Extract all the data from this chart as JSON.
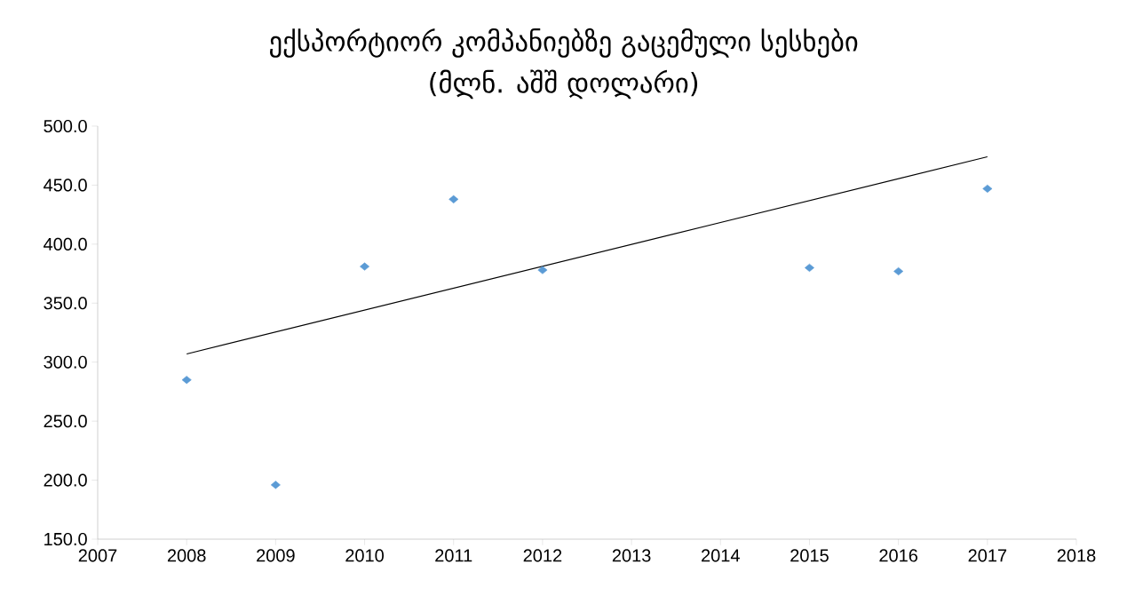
{
  "chart_data": {
    "type": "scatter",
    "title": "ექსპორტიორ კომპანიებზე გაცემული სესხები",
    "subtitle": "(მლნ. აშშ  დოლარი)",
    "marker": "diamond",
    "xlim": [
      2007,
      2018
    ],
    "xticks": [
      2007,
      2008,
      2009,
      2010,
      2011,
      2012,
      2013,
      2014,
      2015,
      2016,
      2017,
      2018
    ],
    "ylim": [
      150,
      500
    ],
    "yticks": [
      {
        "value": 150,
        "label": "150.0"
      },
      {
        "value": 200,
        "label": "200.0"
      },
      {
        "value": 250,
        "label": "250.0"
      },
      {
        "value": 300,
        "label": "300.0"
      },
      {
        "value": 350,
        "label": "350.0"
      },
      {
        "value": 400,
        "label": "400.0"
      },
      {
        "value": 450,
        "label": "450.0"
      },
      {
        "value": 500,
        "label": "500.0"
      }
    ],
    "series": [
      {
        "color": "#5b9bd5",
        "x": [
          2008,
          2009,
          2010,
          2011,
          2012,
          2015,
          2016,
          2017
        ],
        "values": [
          285,
          196,
          381,
          438,
          378,
          380,
          377,
          447
        ]
      },
      {
        "type": "line",
        "color": "#000000",
        "marker": "none",
        "x": [
          2008,
          2017
        ],
        "values": [
          307,
          474
        ]
      }
    ]
  }
}
